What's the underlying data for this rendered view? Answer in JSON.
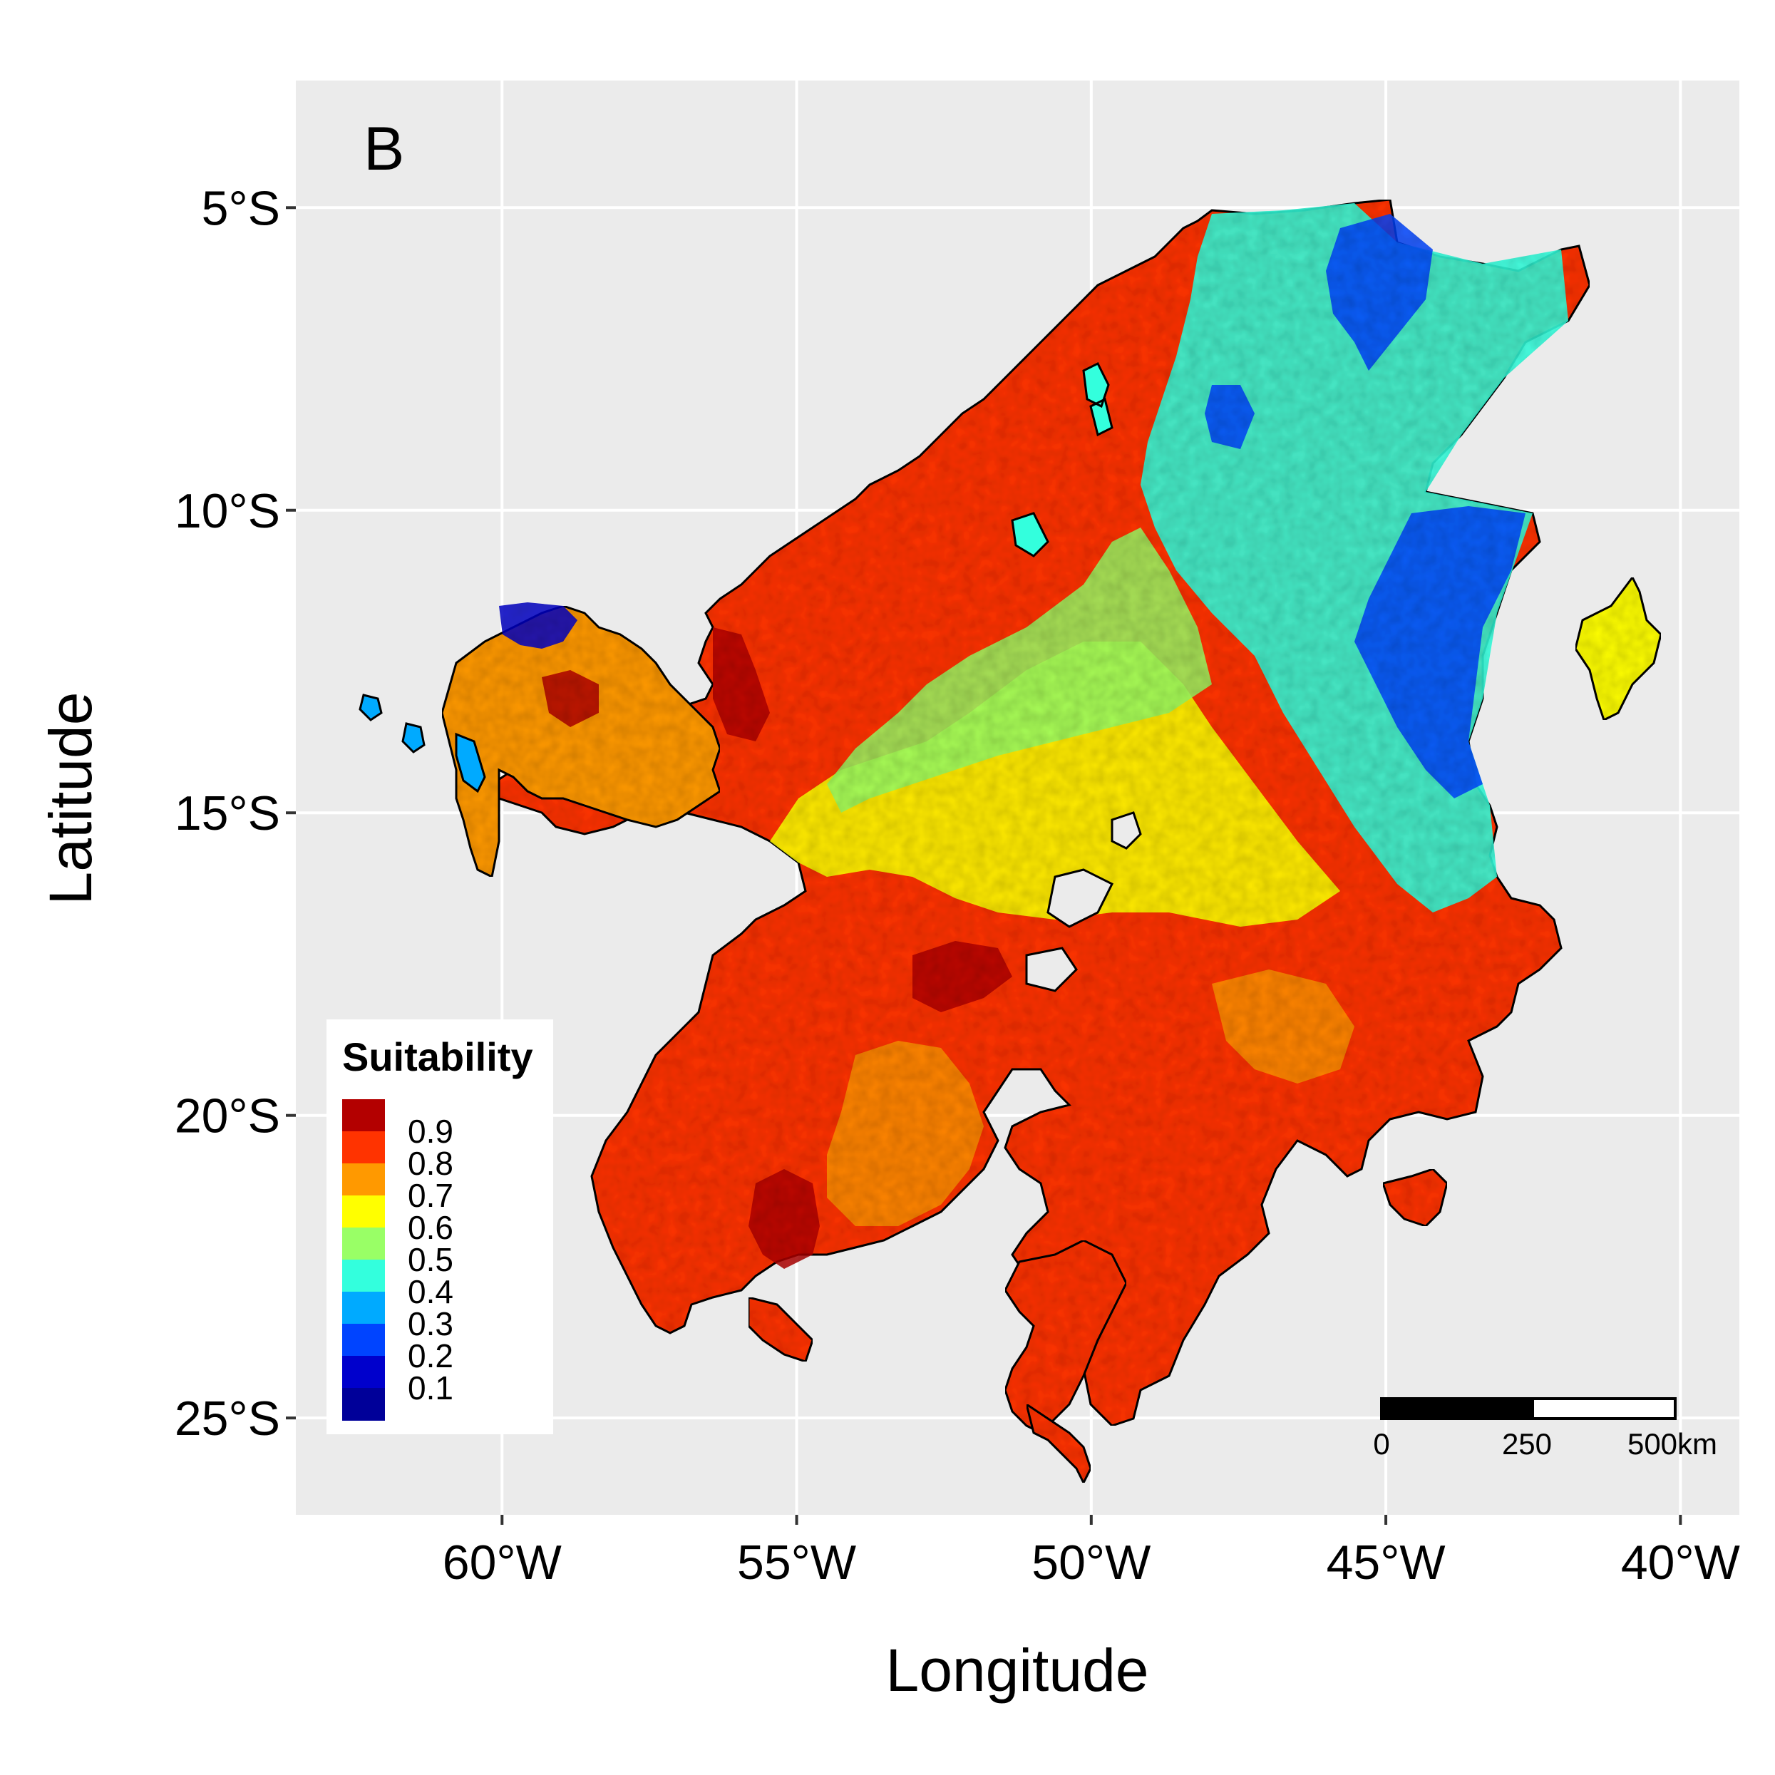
{
  "panel_label": "B",
  "map": {
    "xlabel": "Longitude",
    "ylabel": "Latitude",
    "lon_range": [
      -63.5,
      -39.0
    ],
    "lat_range": [
      -26.6,
      -2.9
    ],
    "lon_ticks": [
      {
        "value": -60,
        "label": "60°W"
      },
      {
        "value": -55,
        "label": "55°W"
      },
      {
        "value": -50,
        "label": "50°W"
      },
      {
        "value": -45,
        "label": "45°W"
      },
      {
        "value": -40,
        "label": "40°W"
      }
    ],
    "lat_ticks": [
      {
        "value": -5,
        "label": "5°S"
      },
      {
        "value": -10,
        "label": "10°S"
      },
      {
        "value": -15,
        "label": "15°S"
      },
      {
        "value": -20,
        "label": "20°S"
      },
      {
        "value": -25,
        "label": "25°S"
      }
    ],
    "panel_background": "#ebebeb",
    "grid_color": "#ffffff",
    "outline_color": "#000000"
  },
  "legend": {
    "title": "Suitability",
    "placement": "bottom-left",
    "entries": [
      {
        "label": "0.9",
        "color": "#b30000"
      },
      {
        "label": "0.8",
        "color": "#ff3300"
      },
      {
        "label": "0.7",
        "color": "#ff9900"
      },
      {
        "label": "0.6",
        "color": "#ffff00"
      },
      {
        "label": "0.5",
        "color": "#99ff66"
      },
      {
        "label": "0.4",
        "color": "#33ffdd"
      },
      {
        "label": "0.3",
        "color": "#00aaff"
      },
      {
        "label": "0.2",
        "color": "#0044ff"
      },
      {
        "label": "0.1",
        "color": "#0000cc"
      },
      {
        "label": "",
        "color": "#000099"
      }
    ]
  },
  "scale_bar": {
    "labels": [
      "0",
      "250",
      "500km"
    ],
    "placement": "bottom-right"
  }
}
